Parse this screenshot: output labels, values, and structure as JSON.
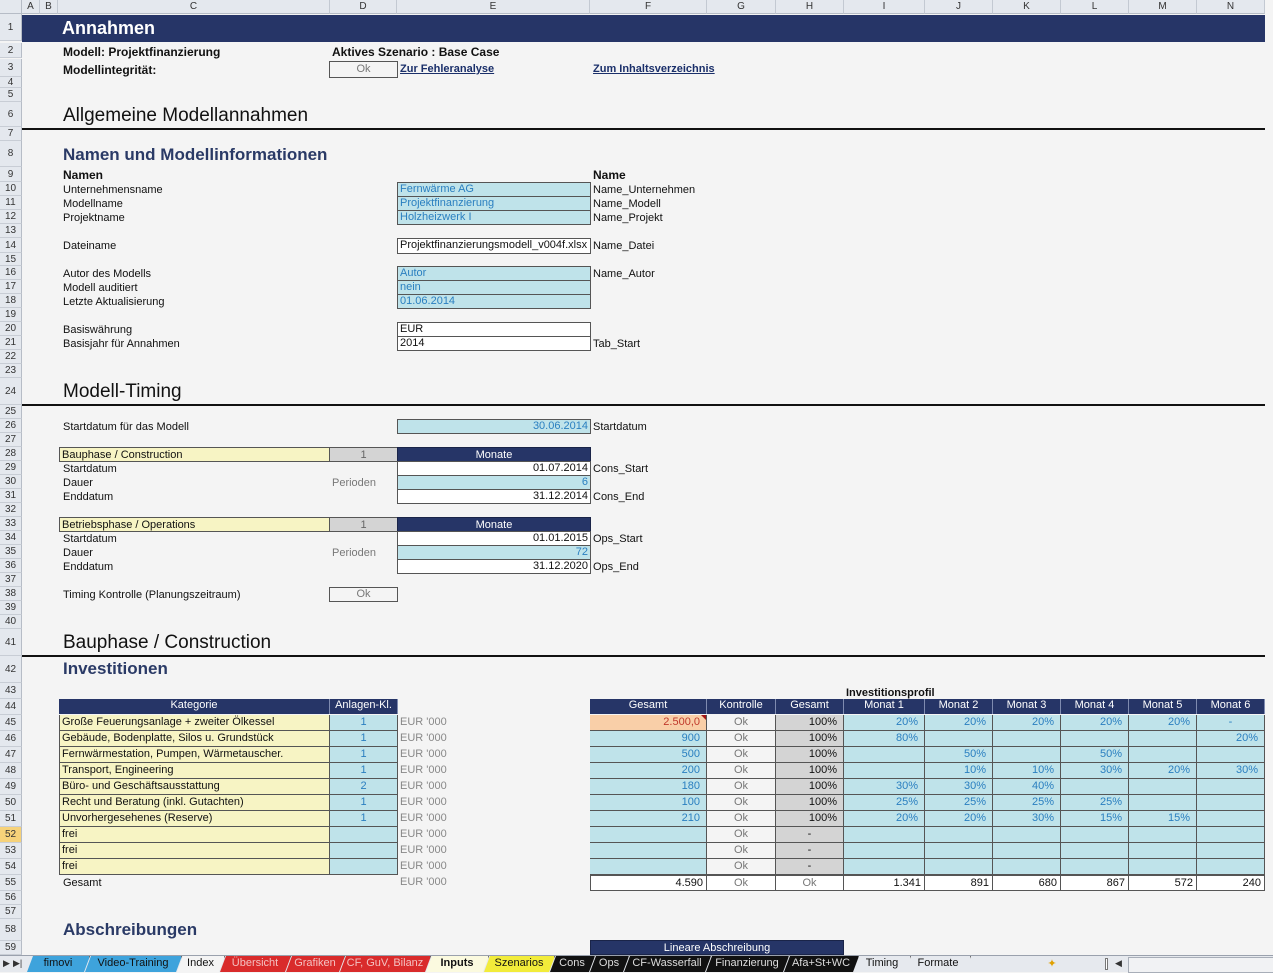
{
  "columns": [
    "A",
    "B",
    "C",
    "D",
    "E",
    "F",
    "G",
    "H",
    "I",
    "J",
    "K",
    "L",
    "M",
    "N"
  ],
  "rows_visible": [
    1,
    2,
    3,
    4,
    5,
    6,
    7,
    8,
    9,
    10,
    11,
    12,
    13,
    14,
    15,
    16,
    17,
    18,
    19,
    20,
    21,
    22,
    23,
    24,
    25,
    26,
    27,
    28,
    29,
    30,
    31,
    32,
    33,
    34,
    35,
    36,
    37,
    38,
    39,
    40,
    41,
    42,
    43,
    44,
    45,
    46,
    47,
    48,
    49,
    50,
    51,
    52,
    53,
    54,
    55,
    56,
    57,
    58,
    59
  ],
  "selected_row": 52,
  "header": {
    "banner_title": "Annahmen",
    "model_label": "Modell: Projektfinanzierung",
    "scenario_label": "Aktives Szenario : Base Case",
    "integrity_label": "Modellintegrität:",
    "integrity_status": "Ok",
    "link_error_analysis": "Zur Fehleranalyse",
    "link_toc": "Zum Inhaltsverzeichnis"
  },
  "section_general": {
    "title": "Allgemeine Modellannahmen",
    "subtitle": "Namen und Modellinformationen",
    "col_names": "Namen",
    "col_name": "Name",
    "fields": [
      {
        "label": "Unternehmensname",
        "value": "Fernwärme AG",
        "name": "Name_Unternehmen",
        "style": "input"
      },
      {
        "label": "Modellname",
        "value": "Projektfinanzierung",
        "name": "Name_Modell",
        "style": "input"
      },
      {
        "label": "Projektname",
        "value": "Holzheizwerk I",
        "name": "Name_Projekt",
        "style": "input"
      },
      {
        "label": "Dateiname",
        "value": "Projektfinanzierungsmodell_v004f.xlsx",
        "name": "Name_Datei",
        "style": "calc"
      },
      {
        "label": "Autor des Modells",
        "value": "Autor",
        "name": "Name_Autor",
        "style": "input"
      },
      {
        "label": "Modell auditiert",
        "value": "nein",
        "name": "",
        "style": "input"
      },
      {
        "label": "Letzte Aktualisierung",
        "value": "01.06.2014",
        "name": "",
        "style": "input"
      },
      {
        "label": "Basiswährung",
        "value": "EUR",
        "name": "",
        "style": "calc"
      },
      {
        "label": "Basisjahr für Annahmen",
        "value": "2014",
        "name": "Tab_Start",
        "style": "calc"
      }
    ]
  },
  "section_timing": {
    "title": "Modell-Timing",
    "start_label": "Startdatum für das Modell",
    "start_value": "30.06.2014",
    "start_name": "Startdatum",
    "construction": {
      "label": "Bauphase / Construction",
      "flag": "1",
      "unit_header": "Monate",
      "start_label": "Startdatum",
      "start_value": "01.07.2014",
      "start_name": "Cons_Start",
      "duration_label": "Dauer",
      "duration_unit": "Perioden",
      "duration_value": "6",
      "end_label": "Enddatum",
      "end_value": "31.12.2014",
      "end_name": "Cons_End"
    },
    "operations": {
      "label": "Betriebsphase / Operations",
      "flag": "1",
      "unit_header": "Monate",
      "start_label": "Startdatum",
      "start_value": "01.01.2015",
      "start_name": "Ops_Start",
      "duration_label": "Dauer",
      "duration_unit": "Perioden",
      "duration_value": "72",
      "end_label": "Enddatum",
      "end_value": "31.12.2020",
      "end_name": "Ops_End"
    },
    "check_label": "Timing Kontrolle (Planungszeitraum)",
    "check_value": "Ok"
  },
  "section_construction": {
    "title": "Bauphase / Construction",
    "subtitle": "Investitionen",
    "profile_title": "Investitionsprofil",
    "headers": {
      "kategorie": "Kategorie",
      "anlagen": "Anlagen-Kl.",
      "gesamt": "Gesamt",
      "kontrolle": "Kontrolle",
      "gesamt_pct": "Gesamt",
      "months": [
        "Monat 1",
        "Monat 2",
        "Monat 3",
        "Monat 4",
        "Monat 5",
        "Monat 6"
      ]
    },
    "unit": "EUR '000",
    "rows": [
      {
        "kategorie": "Große Feuerungsanlage + zweiter Ölkessel",
        "anlagen": "1",
        "gesamt": "2.500,0",
        "kontrolle": "Ok",
        "pct": "100%",
        "months": [
          "20%",
          "20%",
          "20%",
          "20%",
          "20%",
          "-"
        ],
        "highlight": true
      },
      {
        "kategorie": "Gebäude, Bodenplatte, Silos u. Grundstück",
        "anlagen": "1",
        "gesamt": "900",
        "kontrolle": "Ok",
        "pct": "100%",
        "months": [
          "80%",
          "",
          "",
          "",
          "",
          "20%"
        ]
      },
      {
        "kategorie": "Fernwärmestation, Pumpen, Wärmetauscher.",
        "anlagen": "1",
        "gesamt": "500",
        "kontrolle": "Ok",
        "pct": "100%",
        "months": [
          "",
          "50%",
          "",
          "50%",
          "",
          ""
        ]
      },
      {
        "kategorie": "Transport, Engineering",
        "anlagen": "1",
        "gesamt": "200",
        "kontrolle": "Ok",
        "pct": "100%",
        "months": [
          "",
          "10%",
          "10%",
          "30%",
          "20%",
          "30%"
        ]
      },
      {
        "kategorie": "Büro- und Geschäftsausstattung",
        "anlagen": "2",
        "gesamt": "180",
        "kontrolle": "Ok",
        "pct": "100%",
        "months": [
          "30%",
          "30%",
          "40%",
          "",
          "",
          ""
        ]
      },
      {
        "kategorie": "Recht und Beratung (inkl. Gutachten)",
        "anlagen": "1",
        "gesamt": "100",
        "kontrolle": "Ok",
        "pct": "100%",
        "months": [
          "25%",
          "25%",
          "25%",
          "25%",
          "",
          ""
        ]
      },
      {
        "kategorie": "Unvorhergesehenes (Reserve)",
        "anlagen": "1",
        "gesamt": "210",
        "kontrolle": "Ok",
        "pct": "100%",
        "months": [
          "20%",
          "20%",
          "30%",
          "15%",
          "15%",
          ""
        ]
      },
      {
        "kategorie": "frei",
        "anlagen": "",
        "gesamt": "",
        "kontrolle": "Ok",
        "pct": "-",
        "months": [
          "",
          "",
          "",
          "",
          "",
          ""
        ]
      },
      {
        "kategorie": "frei",
        "anlagen": "",
        "gesamt": "",
        "kontrolle": "Ok",
        "pct": "-",
        "months": [
          "",
          "",
          "",
          "",
          "",
          ""
        ]
      },
      {
        "kategorie": "frei",
        "anlagen": "",
        "gesamt": "",
        "kontrolle": "Ok",
        "pct": "-",
        "months": [
          "",
          "",
          "",
          "",
          "",
          ""
        ]
      }
    ],
    "total": {
      "label": "Gesamt",
      "gesamt": "4.590",
      "kontrolle": "Ok",
      "pct": "Ok",
      "months": [
        "1.341",
        "891",
        "680",
        "867",
        "572",
        "240"
      ]
    }
  },
  "section_depreciation": {
    "title": "Abschreibungen",
    "header": "Lineare Abschreibung"
  },
  "sheet_tabs": [
    {
      "label": "fimovi",
      "color": "#3ea3dc",
      "text": "#111"
    },
    {
      "label": "Video-Training",
      "color": "#3ea3dc",
      "text": "#111"
    },
    {
      "label": "Index",
      "color": "#f4f4f4",
      "text": "#111"
    },
    {
      "label": "Übersicht",
      "color": "#d92b2b",
      "text": "#f3c1c1"
    },
    {
      "label": "Grafiken",
      "color": "#d92b2b",
      "text": "#f3c1c1"
    },
    {
      "label": "CF, GuV, Bilanz",
      "color": "#d92b2b",
      "text": "#f3c1c1"
    },
    {
      "label": "Inputs",
      "color": "#fbfadf",
      "text": "#111",
      "active": true
    },
    {
      "label": "Szenarios",
      "color": "#f2ec3a",
      "text": "#111"
    },
    {
      "label": "Cons",
      "color": "#111111",
      "text": "#ddd"
    },
    {
      "label": "Ops",
      "color": "#111111",
      "text": "#ddd"
    },
    {
      "label": "CF-Wasserfall",
      "color": "#111111",
      "text": "#ddd"
    },
    {
      "label": "Finanzierung",
      "color": "#111111",
      "text": "#ddd"
    },
    {
      "label": "Afa+St+WC",
      "color": "#111111",
      "text": "#ddd"
    },
    {
      "label": "Timing",
      "color": "#e6e9ee",
      "text": "#111"
    },
    {
      "label": "Formate",
      "color": "#e6e9ee",
      "text": "#111"
    }
  ],
  "colors": {
    "banner": "#263567",
    "input_fill": "#bfe3ea",
    "input_text": "#2a7fc0",
    "label_fill": "#f7f4c4",
    "check_fill": "#d4d4d4",
    "highlight_fill": "#f9cfa8"
  }
}
